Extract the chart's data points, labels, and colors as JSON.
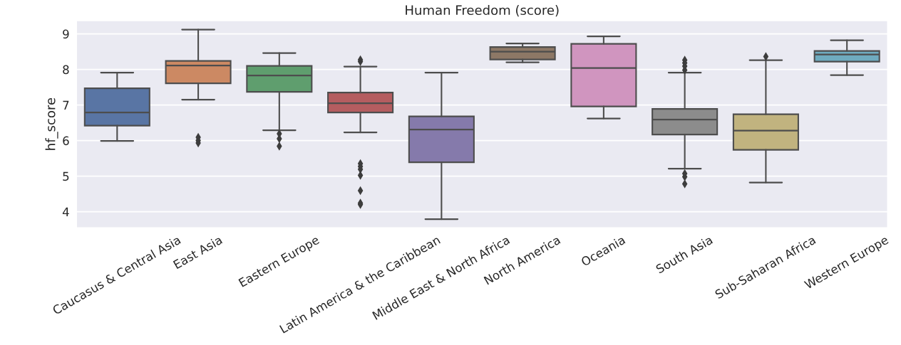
{
  "chart_data": {
    "type": "box",
    "title": "Human Freedom (score)",
    "ylabel": "hf_score",
    "categories": [
      "Caucasus & Central Asia",
      "East Asia",
      "Eastern Europe",
      "Latin America & the Caribbean",
      "Middle East & North Africa",
      "North America",
      "Oceania",
      "South Asia",
      "Sub-Saharan Africa",
      "Western Europe"
    ],
    "colors": [
      "#5975a4",
      "#cc8963",
      "#5f9e6e",
      "#b55d60",
      "#857aab",
      "#8d7866",
      "#d095bf",
      "#8c8c8c",
      "#c1b37f",
      "#6fabbf"
    ],
    "boxes": [
      {
        "low": 5.99,
        "q1": 6.42,
        "median": 6.79,
        "q3": 7.47,
        "high": 7.91
      },
      {
        "low": 7.15,
        "q1": 7.61,
        "median": 8.11,
        "q3": 8.24,
        "high": 9.12,
        "outliers": [
          6.09,
          6.0,
          5.93
        ]
      },
      {
        "low": 6.29,
        "q1": 7.37,
        "median": 7.83,
        "q3": 8.1,
        "high": 8.46,
        "outliers": [
          6.19,
          6.05,
          5.84
        ]
      },
      {
        "low": 6.23,
        "q1": 6.79,
        "median": 7.05,
        "q3": 7.35,
        "high": 8.08,
        "outliers": [
          8.27,
          8.22,
          5.35,
          5.27,
          5.19,
          5.02,
          4.59,
          4.24,
          4.2
        ]
      },
      {
        "low": 3.79,
        "q1": 5.39,
        "median": 6.31,
        "q3": 6.68,
        "high": 7.91
      },
      {
        "low": 8.2,
        "q1": 8.28,
        "median": 8.5,
        "q3": 8.63,
        "high": 8.73
      },
      {
        "low": 6.62,
        "q1": 6.96,
        "median": 8.04,
        "q3": 8.72,
        "high": 8.93
      },
      {
        "low": 5.21,
        "q1": 6.17,
        "median": 6.59,
        "q3": 6.89,
        "high": 7.91,
        "outliers": [
          8.26,
          8.18,
          8.09,
          7.98,
          5.07,
          4.98,
          4.78
        ]
      },
      {
        "low": 4.82,
        "q1": 5.74,
        "median": 6.28,
        "q3": 6.74,
        "high": 8.26,
        "outliers": [
          8.36
        ]
      },
      {
        "low": 7.84,
        "q1": 8.22,
        "median": 8.42,
        "q3": 8.52,
        "high": 8.82
      }
    ],
    "ylim": [
      3.55,
      9.37
    ],
    "yticks": [
      4,
      5,
      6,
      7,
      8,
      9
    ],
    "grid": "y"
  }
}
